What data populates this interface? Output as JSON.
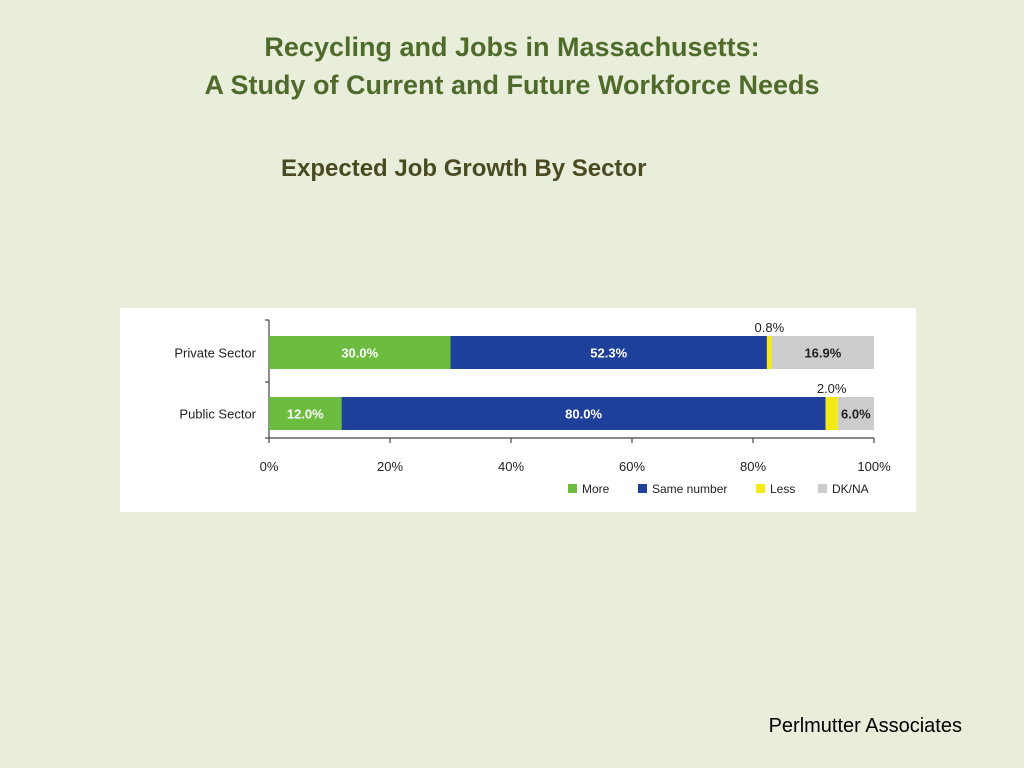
{
  "slide": {
    "title_line1": "Recycling and Jobs in Massachusetts:",
    "title_line2": "A Study of Current and Future Workforce Needs",
    "subtitle": "Expected Job Growth By Sector",
    "footer": "Perlmutter Associates"
  },
  "chart_data": {
    "type": "bar",
    "orientation": "horizontal",
    "stacked": true,
    "categories": [
      "Private Sector",
      "Public Sector"
    ],
    "series": [
      {
        "name": "More",
        "values": [
          30.0,
          12.0
        ],
        "labels": [
          "30.0%",
          "12.0%"
        ],
        "color": "#6cbd3f"
      },
      {
        "name": "Same number",
        "values": [
          52.3,
          80.0
        ],
        "labels": [
          "52.3%",
          "80.0%"
        ],
        "color": "#1e3f9a"
      },
      {
        "name": "Less",
        "values": [
          0.8,
          2.0
        ],
        "labels": [
          "0.8%",
          "2.0%"
        ],
        "color": "#f5e913"
      },
      {
        "name": "DK/NA",
        "values": [
          16.9,
          6.0
        ],
        "labels": [
          "16.9%",
          "6.0%"
        ],
        "color": "#cccccc"
      }
    ],
    "xlim": [
      0,
      100
    ],
    "x_ticks": [
      "0%",
      "20%",
      "40%",
      "60%",
      "80%",
      "100%"
    ],
    "legend_position": "bottom-right",
    "grid": false
  }
}
